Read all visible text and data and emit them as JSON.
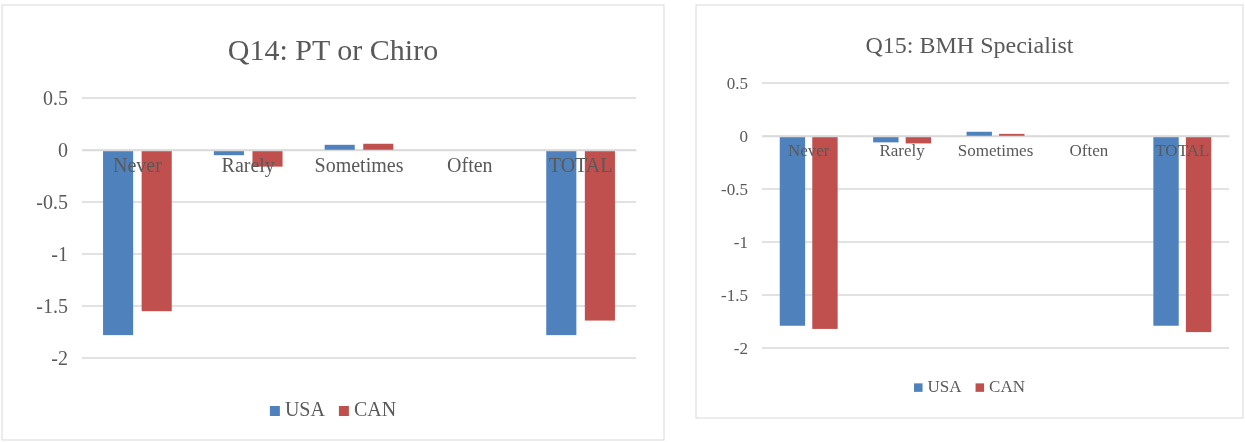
{
  "chart_data": [
    {
      "type": "bar",
      "title": "Q14: PT or Chiro",
      "categories": [
        "Never",
        "Rarely",
        "Sometimes",
        "Often",
        "TOTAL"
      ],
      "series": [
        {
          "name": "USA",
          "color": "#4f81bd",
          "values": [
            -1.78,
            -0.05,
            0.05,
            0,
            -1.78
          ]
        },
        {
          "name": "CAN",
          "color": "#c0504d",
          "values": [
            -1.55,
            -0.16,
            0.06,
            0,
            -1.64
          ]
        }
      ],
      "ylim": [
        -2,
        0.5
      ],
      "yticks": [
        0.5,
        0,
        -0.5,
        -1,
        -1.5,
        -2
      ],
      "grid": "y",
      "legend": "bottom"
    },
    {
      "type": "bar",
      "title": "Q15: BMH Specialist",
      "categories": [
        "Never",
        "Rarely",
        "Sometimes",
        "Often",
        "TOTAL"
      ],
      "series": [
        {
          "name": "USA",
          "color": "#4f81bd",
          "values": [
            -1.79,
            -0.06,
            0.04,
            0,
            -1.79
          ]
        },
        {
          "name": "CAN",
          "color": "#c0504d",
          "values": [
            -1.82,
            -0.07,
            0.02,
            0,
            -1.85
          ]
        }
      ],
      "ylim": [
        -2,
        0.5
      ],
      "yticks": [
        0.5,
        0,
        -0.5,
        -1,
        -1.5,
        -2
      ],
      "grid": "y",
      "legend": "bottom"
    }
  ]
}
